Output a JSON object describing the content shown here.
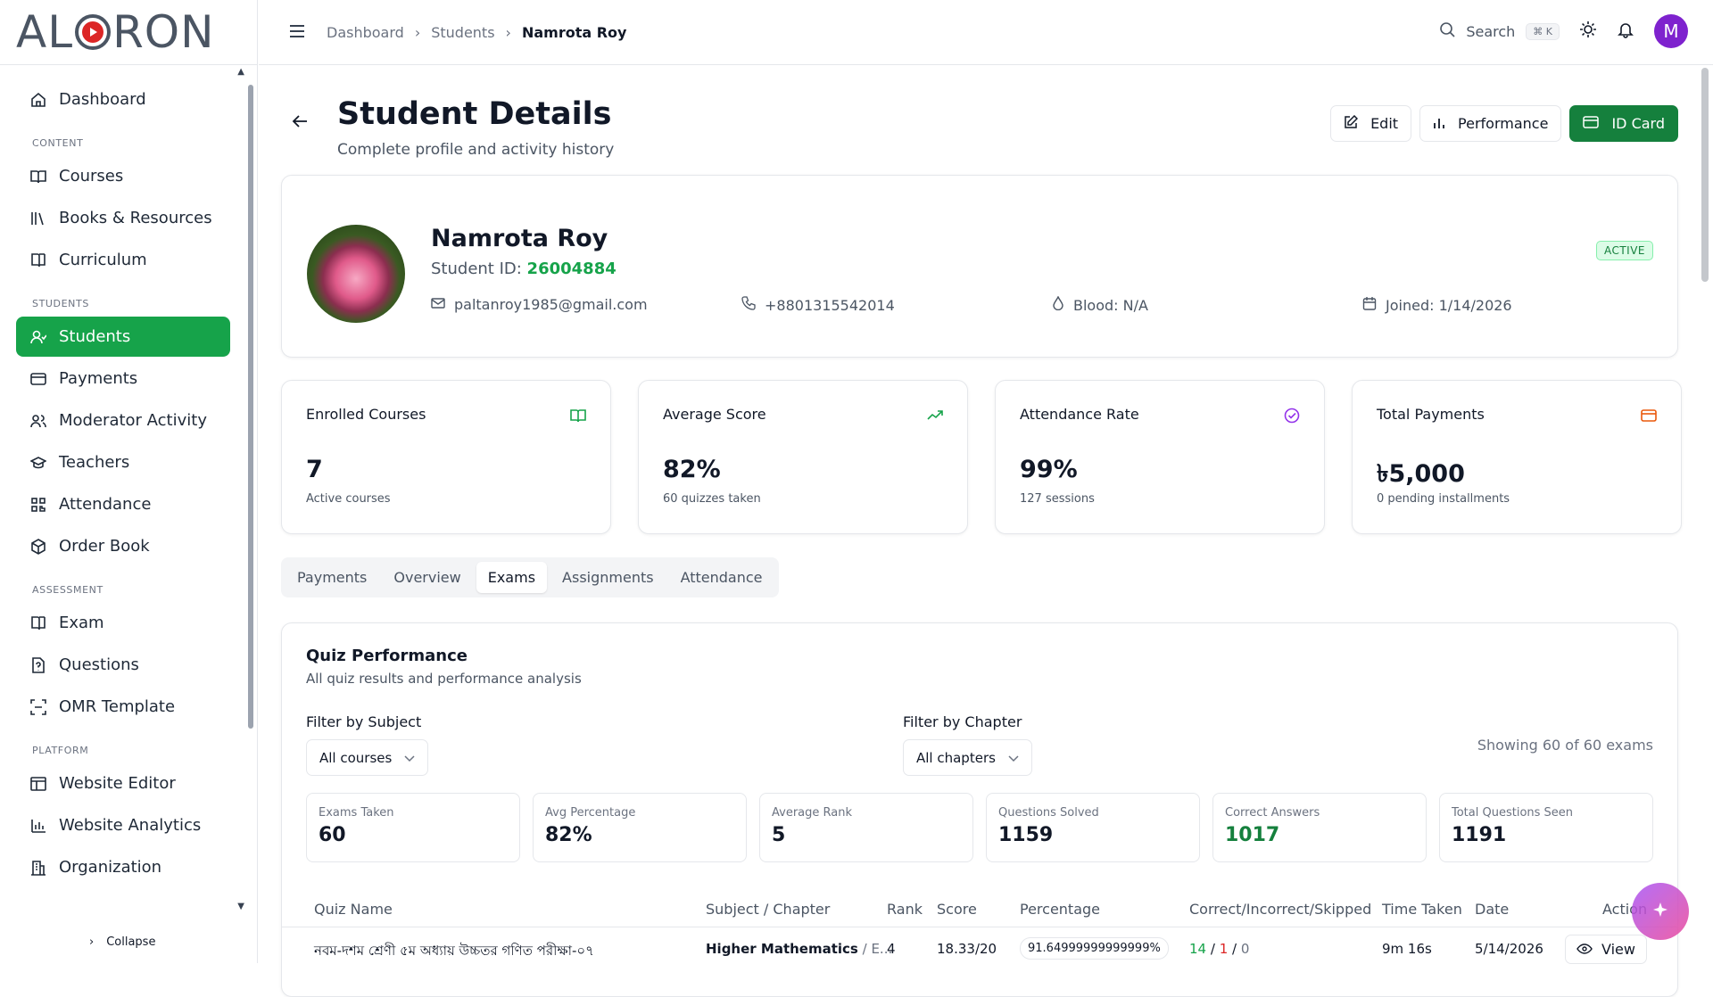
{
  "brand": {
    "logo_left": "AL",
    "logo_right": "RON"
  },
  "sidebar": {
    "items_top": [
      {
        "label": "Dashboard",
        "icon": "home-icon"
      }
    ],
    "sections": [
      {
        "title": "CONTENT",
        "items": [
          {
            "label": "Courses",
            "icon": "book-open-icon"
          },
          {
            "label": "Books & Resources",
            "icon": "library-icon"
          },
          {
            "label": "Curriculum",
            "icon": "book-icon"
          }
        ]
      },
      {
        "title": "STUDENTS",
        "items": [
          {
            "label": "Students",
            "icon": "user-icon",
            "active": true
          },
          {
            "label": "Payments",
            "icon": "card-icon"
          },
          {
            "label": "Moderator Activity",
            "icon": "users-icon"
          },
          {
            "label": "Teachers",
            "icon": "graduation-cap-icon"
          },
          {
            "label": "Attendance",
            "icon": "qr-icon"
          },
          {
            "label": "Order Book",
            "icon": "package-icon"
          }
        ]
      },
      {
        "title": "ASSESSMENT",
        "items": [
          {
            "label": "Exam",
            "icon": "book-icon"
          },
          {
            "label": "Questions",
            "icon": "file-question-icon"
          },
          {
            "label": "OMR Template",
            "icon": "scan-icon"
          }
        ]
      },
      {
        "title": "PLATFORM",
        "items": [
          {
            "label": "Website Editor",
            "icon": "layout-icon"
          },
          {
            "label": "Website Analytics",
            "icon": "bar-chart-icon"
          },
          {
            "label": "Organization",
            "icon": "building-icon"
          }
        ]
      }
    ],
    "collapse_label": "Collapse"
  },
  "topbar": {
    "breadcrumbs": [
      "Dashboard",
      "Students",
      "Namrota Roy"
    ],
    "search_label": "Search",
    "search_shortcut": "⌘ K",
    "avatar_letter": "M"
  },
  "page": {
    "title": "Student Details",
    "subtitle": "Complete profile and activity history",
    "actions": {
      "edit": "Edit",
      "performance": "Performance",
      "id_card": "ID Card"
    }
  },
  "profile": {
    "name": "Namrota Roy",
    "id_label": "Student ID:",
    "id_value": "26004884",
    "status": "ACTIVE",
    "email": "paltanroy1985@gmail.com",
    "phone": "+8801315542014",
    "blood": "Blood: N/A",
    "joined": "Joined: 1/14/2026"
  },
  "stats": [
    {
      "title": "Enrolled Courses",
      "value": "7",
      "sub": "Active courses",
      "icon": "book-open-icon",
      "color": "#16a34a"
    },
    {
      "title": "Average Score",
      "value": "82%",
      "sub": "60 quizzes taken",
      "icon": "trending-up-icon",
      "color": "#16a34a"
    },
    {
      "title": "Attendance Rate",
      "value": "99%",
      "sub": "127 sessions",
      "icon": "check-circle-icon",
      "color": "#9333ea"
    },
    {
      "title": "Total Payments",
      "value": "৳5,000",
      "sub": "0 pending installments",
      "icon": "credit-card-icon",
      "color": "#ea580c"
    }
  ],
  "tabs": [
    "Payments",
    "Overview",
    "Exams",
    "Assignments",
    "Attendance"
  ],
  "active_tab": "Exams",
  "quiz": {
    "title": "Quiz Performance",
    "subtitle": "All quiz results and performance analysis",
    "filter_subject_label": "Filter by Subject",
    "filter_subject_value": "All courses",
    "filter_chapter_label": "Filter by Chapter",
    "filter_chapter_value": "All chapters",
    "showing": "Showing 60 of 60 exams",
    "metrics": [
      {
        "label": "Exams Taken",
        "value": "60"
      },
      {
        "label": "Avg Percentage",
        "value": "82%"
      },
      {
        "label": "Average Rank",
        "value": "5"
      },
      {
        "label": "Questions Solved",
        "value": "1159"
      },
      {
        "label": "Correct Answers",
        "value": "1017"
      },
      {
        "label": "Total Questions Seen",
        "value": "1191"
      }
    ],
    "columns": [
      "Quiz Name",
      "Subject / Chapter",
      "Rank",
      "Score",
      "Percentage",
      "Correct/Incorrect/Skipped",
      "Time Taken",
      "Date",
      "Action"
    ],
    "rows": [
      {
        "name": "নবম-দশম শ্রেণী ৫ম অধ্যায় উচ্চতর গণিত পরীক্ষা-০৭",
        "subject": "Higher Mathematics",
        "chapter": " / E...",
        "rank": "4",
        "score": "18.33/20",
        "percentage": "91.64999999999999%",
        "correct": "14",
        "incorrect": "1",
        "skipped": "0",
        "time": "9m 16s",
        "date": "5/14/2026",
        "action": "View"
      }
    ]
  }
}
